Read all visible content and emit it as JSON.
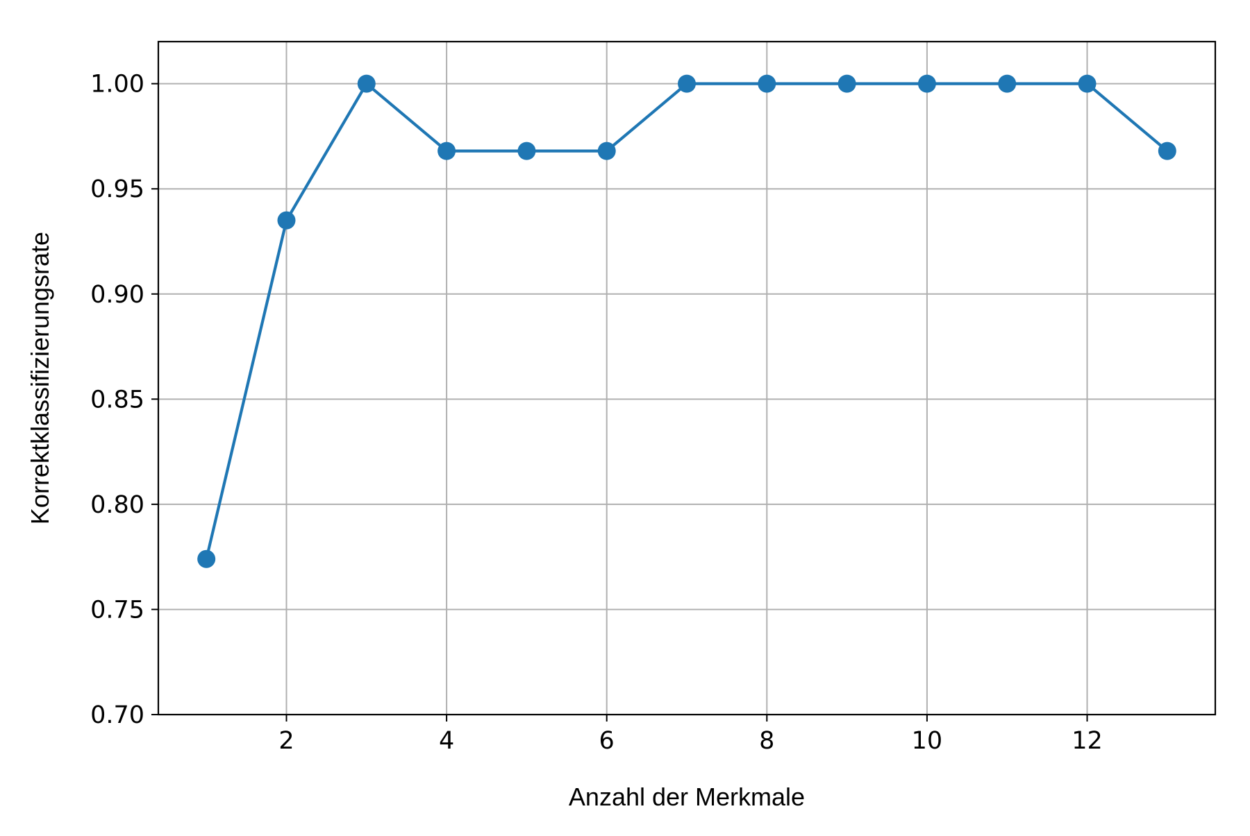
{
  "chart_data": {
    "type": "line",
    "title": "",
    "xlabel": "Anzahl der Merkmale",
    "ylabel": "Korrektklassifizierungsrate",
    "xlim": [
      0.4,
      13.6
    ],
    "ylim": [
      0.7,
      1.02
    ],
    "xticks": [
      2,
      4,
      6,
      8,
      10,
      12
    ],
    "xtick_labels": [
      "2",
      "4",
      "6",
      "8",
      "10",
      "12"
    ],
    "yticks": [
      0.7,
      0.75,
      0.8,
      0.85,
      0.9,
      0.95,
      1.0
    ],
    "ytick_labels": [
      "0.70",
      "0.75",
      "0.80",
      "0.85",
      "0.90",
      "0.95",
      "1.00"
    ],
    "grid": true,
    "legend": "none",
    "series": [
      {
        "color": "#1f77b4",
        "marker": "circle",
        "x": [
          1,
          2,
          3,
          4,
          5,
          6,
          7,
          8,
          9,
          10,
          11,
          12,
          13
        ],
        "y": [
          0.774,
          0.935,
          1.0,
          0.968,
          0.968,
          0.968,
          1.0,
          1.0,
          1.0,
          1.0,
          1.0,
          1.0,
          0.968
        ]
      }
    ]
  }
}
